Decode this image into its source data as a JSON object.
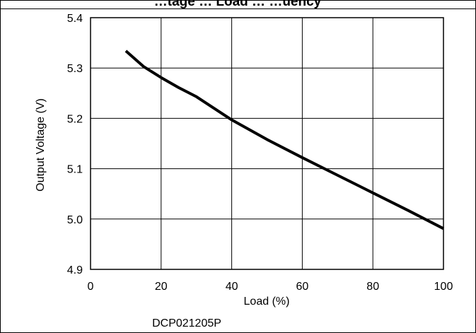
{
  "chart_data": {
    "type": "line",
    "title": "…tage … Load … …uency",
    "xlabel": "Load (%)",
    "ylabel": "Output Voltage (V)",
    "xlim": [
      0,
      100
    ],
    "ylim": [
      4.9,
      5.4
    ],
    "xticks": [
      0,
      20,
      40,
      60,
      80,
      100
    ],
    "xtick_labels": [
      "0",
      "20",
      "40",
      "60",
      "80",
      "100"
    ],
    "yticks": [
      4.9,
      5.0,
      5.1,
      5.2,
      5.3,
      5.4
    ],
    "ytick_labels": [
      "4.9",
      "5.0",
      "5.1",
      "5.2",
      "5.3",
      "5.4"
    ],
    "grid": true,
    "legend": "none",
    "line_color": "#000000",
    "caption": "DCP021205P",
    "series": [
      {
        "x": [
          10,
          15,
          20,
          25,
          30,
          40,
          50,
          60,
          70,
          80,
          90,
          100
        ],
        "y": [
          5.334,
          5.303,
          5.281,
          5.261,
          5.243,
          5.197,
          5.158,
          5.122,
          5.087,
          5.052,
          5.017,
          4.981
        ]
      }
    ]
  }
}
